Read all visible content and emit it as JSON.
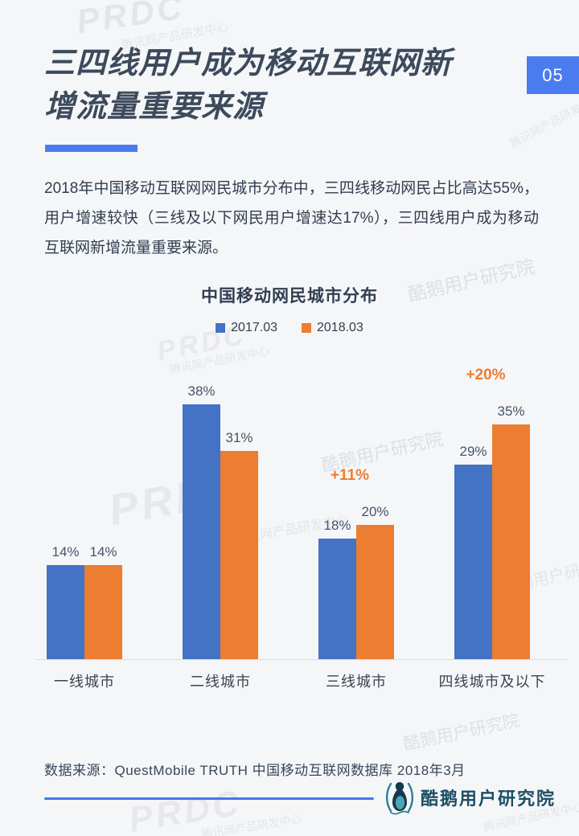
{
  "page": {
    "badge": "05",
    "title_line1": "三四线用户成为移动互联网新",
    "title_line2": "增流量重要来源",
    "paragraph": "2018年中国移动互联网网民城市分布中，三四线移动网民占比高达55%，用户增速较快（三线及以下网民用户增速达17%），三四线用户成为移动互联网新增流量重要来源。",
    "source": "数据来源：QuestMobile TRUTH 中国移动互联网数据库 2018年3月",
    "logo_text": "酷鹅用户研究院"
  },
  "watermarks": {
    "prdc": "PRDC",
    "dept": "腾讯网产品研发中心",
    "lab": "酷鹅用户研究院"
  },
  "colors": {
    "accent_blue": "#4a7cf0",
    "bar_blue": "#4472c4",
    "bar_orange": "#ed7d31",
    "annotation_orange": "#ed7d31",
    "logo_teal": "#1d4f63",
    "title_text": "#3d4a5c",
    "background": "#f5f6f8"
  },
  "chart_data": {
    "type": "bar",
    "title": "中国移动网民城市分布",
    "categories": [
      "一线城市",
      "二线城市",
      "三线城市",
      "四线城市及以下"
    ],
    "series": [
      {
        "name": "2017.03",
        "color": "#4472c4",
        "values": [
          14,
          38,
          18,
          29
        ]
      },
      {
        "name": "2018.03",
        "color": "#ed7d31",
        "values": [
          14,
          31,
          20,
          35
        ]
      }
    ],
    "value_suffix": "%",
    "data_labels": [
      "14%",
      "38%",
      "18%",
      "29%",
      "14%",
      "31%",
      "20%",
      "35%"
    ],
    "annotations": [
      {
        "category_index": 2,
        "text": "+11%"
      },
      {
        "category_index": 3,
        "text": "+20%"
      }
    ],
    "legend_position": "top",
    "xlabel": "",
    "ylabel": "",
    "ylim": [
      0,
      40
    ],
    "gridlines": false
  }
}
